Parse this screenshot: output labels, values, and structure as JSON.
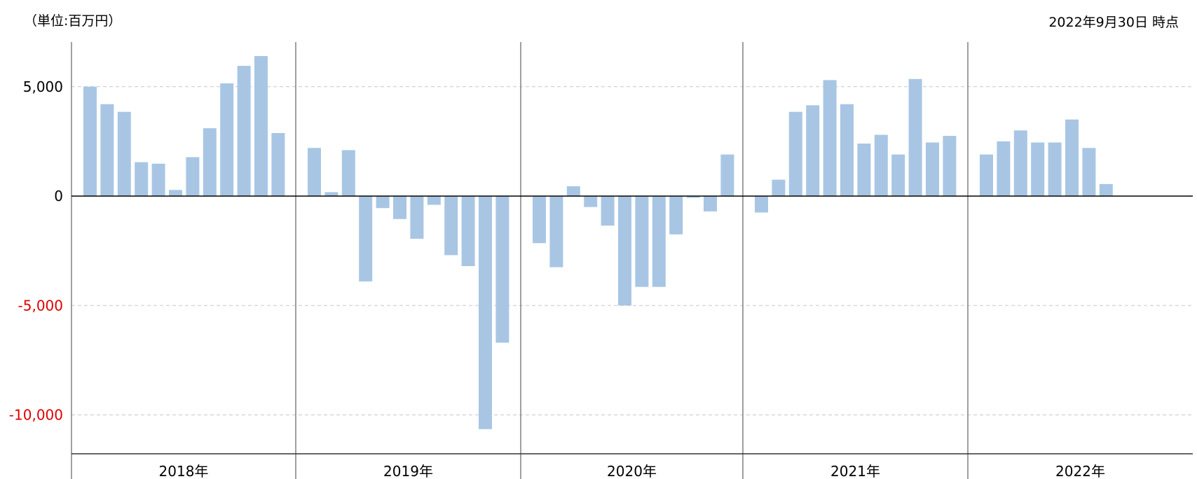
{
  "chart_data": {
    "type": "bar",
    "unit_label": "（単位:百万円）",
    "as_of": "2022年9月30日 時点",
    "y_ticks": [
      5000,
      0,
      -5000,
      -10000
    ],
    "y_tick_labels": [
      "5,000",
      "0",
      "-5,000",
      "-10,000"
    ],
    "ylim": [
      -11800,
      7000
    ],
    "grid": "dashed horizontal",
    "colors": {
      "bar": "#a8c6e4",
      "negative_label": "#e00000",
      "axis": "#000000",
      "divider": "#808080",
      "grid": "#c8c8c8"
    },
    "groups": [
      {
        "label": "2018年",
        "values": [
          5000,
          4200,
          3850,
          1550,
          1480,
          280,
          1780,
          3100,
          5150,
          5950,
          6400,
          2880
        ]
      },
      {
        "label": "2019年",
        "values": [
          2200,
          180,
          2100,
          -3900,
          -550,
          -1050,
          -1950,
          -400,
          -2700,
          -3200,
          -10650,
          -6700
        ]
      },
      {
        "label": "2020年",
        "values": [
          -2150,
          -3250,
          450,
          -500,
          -1350,
          -5000,
          -4150,
          -4150,
          -1750,
          -80,
          -700,
          1900
        ]
      },
      {
        "label": "2021年",
        "values": [
          -750,
          750,
          3850,
          4150,
          5300,
          4200,
          2400,
          2800,
          1900,
          5350,
          2450,
          2750
        ]
      },
      {
        "label": "2022年",
        "values": [
          1900,
          2500,
          3000,
          2450,
          2450,
          3500,
          2200,
          550
        ]
      }
    ]
  }
}
